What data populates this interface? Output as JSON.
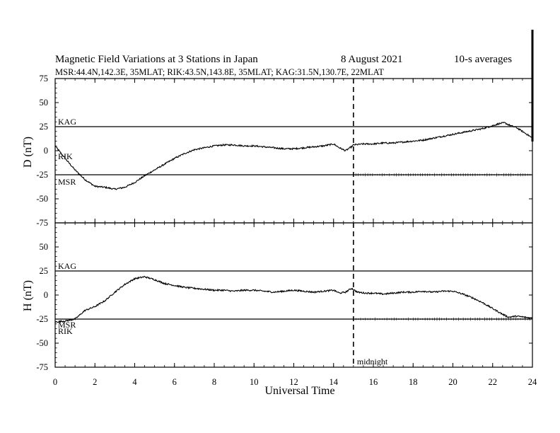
{
  "header": {
    "title": "Magnetic Field Variations at 3 Stations in Japan",
    "date": "8   August  2021",
    "averaging": "10-s averages",
    "stations_line": "MSR:44.4N,142.3E, 35MLAT;  RIK:43.5N,143.8E, 35MLAT;  KAG:31.5N,130.7E, 22MLAT"
  },
  "chart_data": [
    {
      "type": "line",
      "panel": "D",
      "ylabel": "D (nT)",
      "xlabel": "Universal Time",
      "xlim": [
        0,
        24
      ],
      "ylim": [
        -75,
        75
      ],
      "yticks": [
        75,
        50,
        25,
        0,
        -25,
        -50,
        -75
      ],
      "xticks": [
        0,
        2,
        4,
        6,
        8,
        10,
        12,
        14,
        16,
        18,
        20,
        22,
        24
      ],
      "series": [
        {
          "name": "KAG",
          "x": [
            0,
            24
          ],
          "y": [
            25,
            25
          ]
        },
        {
          "name": "RIK",
          "x": [
            0,
            0.5,
            1,
            1.5,
            2,
            2.5,
            3,
            3.5,
            4,
            4.5,
            5,
            5.5,
            6,
            6.5,
            7,
            7.5,
            8,
            8.5,
            9,
            9.5,
            10,
            10.5,
            11,
            11.5,
            12,
            12.5,
            13,
            13.5,
            14,
            14.3,
            14.6,
            14.9,
            15,
            15.5,
            16,
            16.5,
            17,
            17.5,
            18,
            18.5,
            19,
            19.5,
            20,
            20.5,
            21,
            21.5,
            22,
            22.3,
            22.6,
            22.9,
            23.2,
            23.5,
            23.8,
            24
          ],
          "y": [
            5,
            -8,
            -20,
            -30,
            -37,
            -38,
            -40,
            -38,
            -33,
            -26,
            -20,
            -14,
            -8,
            -3,
            1,
            3,
            5,
            6,
            6,
            5,
            5,
            4,
            3,
            2,
            2,
            3,
            4,
            5,
            7,
            3,
            0,
            4,
            6,
            7,
            7,
            8,
            8,
            9,
            10,
            11,
            13,
            15,
            17,
            19,
            21,
            23,
            26,
            28,
            29,
            26,
            24,
            20,
            16,
            13
          ]
        },
        {
          "name": "MSR",
          "x": [
            0,
            24
          ],
          "y": [
            -25,
            -25
          ]
        }
      ],
      "annotations": [
        {
          "text": "midnight",
          "x": 15
        }
      ]
    },
    {
      "type": "line",
      "panel": "H",
      "ylabel": "H (nT)",
      "xlabel": "Universal Time",
      "xlim": [
        0,
        24
      ],
      "ylim": [
        -75,
        75
      ],
      "yticks": [
        75,
        50,
        25,
        0,
        -25,
        -50,
        -75
      ],
      "xticks": [
        0,
        2,
        4,
        6,
        8,
        10,
        12,
        14,
        16,
        18,
        20,
        22,
        24
      ],
      "series": [
        {
          "name": "KAG",
          "x": [
            0,
            24
          ],
          "y": [
            25,
            25
          ]
        },
        {
          "name": "RIK",
          "x": [
            0,
            0.5,
            1,
            1.5,
            2,
            2.5,
            3,
            3.5,
            4,
            4.5,
            5,
            5.5,
            6,
            6.5,
            7,
            7.5,
            8,
            8.5,
            9,
            9.5,
            10,
            10.5,
            11,
            11.5,
            12,
            12.5,
            13,
            13.5,
            14,
            14.3,
            14.6,
            14.9,
            15.2,
            15.6,
            16,
            16.5,
            17,
            17.5,
            18,
            18.5,
            19,
            19.5,
            20,
            20.5,
            21,
            21.5,
            22,
            22.5,
            22.8,
            23.2,
            23.6,
            24
          ],
          "y": [
            -28,
            -27,
            -25,
            -16,
            -12,
            -6,
            3,
            11,
            17,
            19,
            16,
            12,
            10,
            8,
            7,
            6,
            5,
            5,
            4,
            5,
            5,
            4,
            3,
            4,
            5,
            4,
            3,
            4,
            5,
            2,
            3,
            7,
            3,
            2,
            2,
            1,
            2,
            3,
            3,
            4,
            3,
            4,
            4,
            1,
            -3,
            -8,
            -14,
            -20,
            -23,
            -22,
            -23,
            -24
          ]
        },
        {
          "name": "MSR",
          "x": [
            0,
            24
          ],
          "y": [
            -25,
            -25
          ]
        }
      ],
      "annotations": [
        {
          "text": "midnight",
          "x": 15
        }
      ]
    }
  ]
}
